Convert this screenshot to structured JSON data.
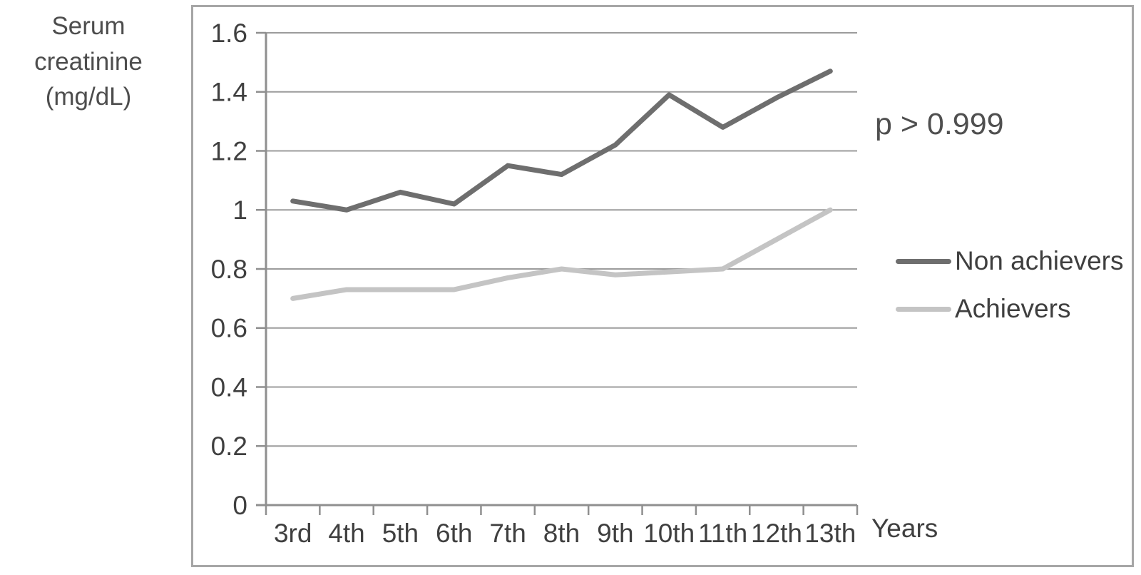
{
  "y_axis_title": {
    "line1": "Serum creatinine",
    "line2": "(mg/dL)"
  },
  "annotation": "p > 0.999",
  "legend": [
    {
      "name": "Non achievers",
      "color": "#6e6e6e"
    },
    {
      "name": "Achievers",
      "color": "#c4c4c4"
    }
  ],
  "colors": {
    "axis": "#8f8f8f",
    "gridline": "#9c9c9c",
    "text": "#3f3f3f",
    "border": "#a6a6a6",
    "background": "#ffffff",
    "non_achievers_line": "#6e6e6e",
    "achievers_line": "#c4c4c4"
  },
  "chart_data": {
    "type": "line",
    "title": "",
    "xlabel": "Years",
    "ylabel": "Serum creatinine (mg/dL)",
    "categories": [
      "3rd",
      "4th",
      "5th",
      "6th",
      "7th",
      "8th",
      "9th",
      "10th",
      "11th",
      "12th",
      "13th"
    ],
    "series": [
      {
        "name": "Non achievers",
        "color": "#6e6e6e",
        "values": [
          1.03,
          1.0,
          1.06,
          1.02,
          1.15,
          1.12,
          1.22,
          1.39,
          1.28,
          1.38,
          1.47
        ]
      },
      {
        "name": "Achievers",
        "color": "#c4c4c4",
        "values": [
          0.7,
          0.73,
          0.73,
          0.73,
          0.77,
          0.8,
          0.78,
          0.79,
          0.8,
          0.9,
          1.0
        ]
      }
    ],
    "ylim": [
      0,
      1.6
    ],
    "ytick_step": 0.2,
    "yticks": [
      0,
      0.2,
      0.4,
      0.6,
      0.8,
      1,
      1.2,
      1.4,
      1.6
    ],
    "ytick_labels": [
      "0",
      "0.2",
      "0.4",
      "0.6",
      "0.8",
      "1",
      "1.2",
      "1.4",
      "1.6"
    ],
    "grid": true,
    "legend_position": "right",
    "annotation": "p > 0.999"
  }
}
